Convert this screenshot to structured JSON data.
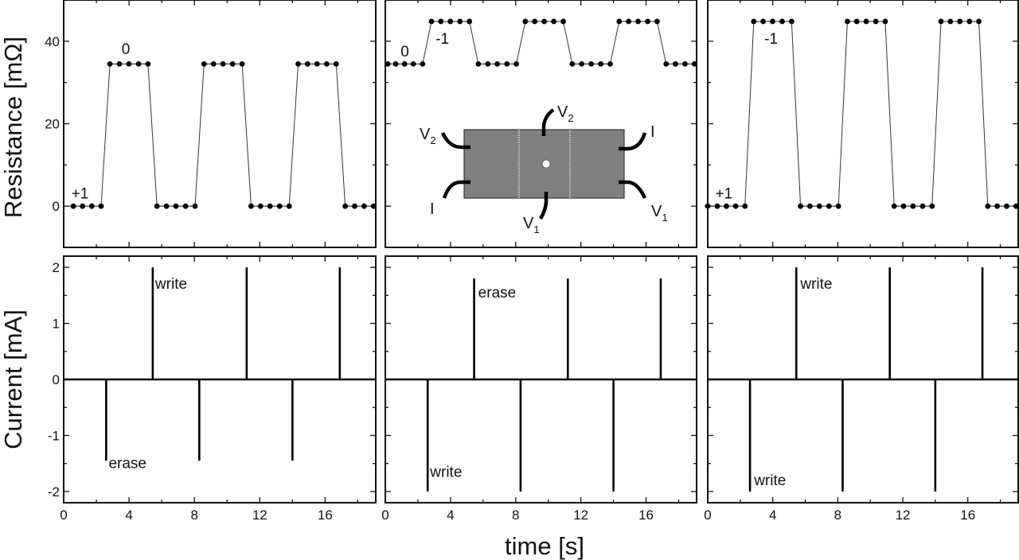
{
  "figure": {
    "x_axis_title": "time  [s]",
    "top_y_axis_title": "Resistance  [mΩ]",
    "bottom_y_axis_title": "Current  [mA]",
    "x_tick_labels": [
      "0",
      "4",
      "8",
      "12",
      "16"
    ],
    "top_y_tick_labels": [
      "0",
      "20",
      "40"
    ],
    "bottom_y_tick_labels": [
      "-2",
      "-1",
      "0",
      "1",
      "2"
    ]
  },
  "inset": {
    "labels": [
      "V2",
      "V2",
      "I",
      "I",
      "V1",
      "V1"
    ],
    "fill_color": "#808080"
  },
  "chart_data": [
    {
      "type": "line",
      "panel": "top-left",
      "ylabel": "Resistance [mΩ]",
      "xlabel": "time [s]",
      "xlim": [
        0,
        19.1
      ],
      "ylim": [
        -10,
        50
      ],
      "y_ticks": [
        0,
        20,
        40
      ],
      "x_ticks": [
        0,
        4,
        8,
        12,
        16
      ],
      "annotations": [
        {
          "text": "+1",
          "x": 1.0,
          "y": 3
        },
        {
          "text": "0",
          "x": 3.8,
          "y": 38
        }
      ],
      "levels": {
        "low": 0,
        "high": 34.5
      },
      "start_level": "low",
      "groups": [
        {
          "level": "low",
          "t": [
            0.59,
            1.15,
            1.72,
            2.29
          ]
        },
        {
          "level": "high",
          "t": [
            2.83,
            3.41,
            3.99,
            4.58,
            5.16
          ]
        },
        {
          "level": "low",
          "t": [
            5.71,
            6.29,
            6.87,
            7.46,
            8.04
          ]
        },
        {
          "level": "high",
          "t": [
            8.59,
            9.17,
            9.75,
            10.34,
            10.92
          ]
        },
        {
          "level": "low",
          "t": [
            11.47,
            12.05,
            12.63,
            13.22,
            13.8
          ]
        },
        {
          "level": "high",
          "t": [
            14.35,
            14.93,
            15.51,
            16.1,
            16.68
          ]
        },
        {
          "level": "low",
          "t": [
            17.23,
            17.81,
            18.39,
            18.97
          ]
        }
      ]
    },
    {
      "type": "line",
      "panel": "top-middle",
      "ylabel": "Resistance [mΩ]",
      "xlabel": "time [s]",
      "xlim": [
        0,
        19.1
      ],
      "ylim": [
        -10,
        50
      ],
      "annotations": [
        {
          "text": "0",
          "x": 1.2,
          "y": 37.5
        },
        {
          "text": "-1",
          "x": 3.5,
          "y": 40.5
        }
      ],
      "levels": {
        "low": 34.5,
        "high": 44.8
      },
      "groups": [
        {
          "level": "low",
          "t": [
            0.15,
            0.64,
            1.18,
            1.72,
            2.29
          ]
        },
        {
          "level": "high",
          "t": [
            2.83,
            3.41,
            3.99,
            4.58,
            5.16
          ]
        },
        {
          "level": "low",
          "t": [
            5.71,
            6.29,
            6.87,
            7.46,
            8.04
          ]
        },
        {
          "level": "high",
          "t": [
            8.59,
            9.17,
            9.75,
            10.34,
            10.92
          ]
        },
        {
          "level": "low",
          "t": [
            11.47,
            12.05,
            12.63,
            13.22,
            13.8
          ]
        },
        {
          "level": "high",
          "t": [
            14.35,
            14.93,
            15.51,
            16.1,
            16.68
          ]
        },
        {
          "level": "low",
          "t": [
            17.23,
            17.81,
            18.39,
            18.97
          ]
        }
      ]
    },
    {
      "type": "line",
      "panel": "top-right",
      "ylabel": "Resistance [mΩ]",
      "xlabel": "time [s]",
      "xlim": [
        0,
        19.1
      ],
      "ylim": [
        -10,
        50
      ],
      "annotations": [
        {
          "text": "+1",
          "x": 1.0,
          "y": 3
        },
        {
          "text": "-1",
          "x": 3.9,
          "y": 40.5
        }
      ],
      "levels": {
        "low": 0,
        "high": 44.8
      },
      "groups": [
        {
          "level": "low",
          "t": [
            0.0,
            0.59,
            1.15,
            1.72,
            2.29
          ]
        },
        {
          "level": "high",
          "t": [
            2.83,
            3.41,
            3.99,
            4.58,
            5.16
          ]
        },
        {
          "level": "low",
          "t": [
            5.71,
            6.29,
            6.87,
            7.46,
            8.04
          ]
        },
        {
          "level": "high",
          "t": [
            8.59,
            9.17,
            9.75,
            10.34,
            10.92
          ]
        },
        {
          "level": "low",
          "t": [
            11.47,
            12.05,
            12.63,
            13.22,
            13.8
          ]
        },
        {
          "level": "high",
          "t": [
            14.35,
            14.93,
            15.51,
            16.1,
            16.68
          ]
        },
        {
          "level": "low",
          "t": [
            17.23,
            17.81,
            18.39,
            18.97
          ]
        }
      ]
    },
    {
      "type": "line",
      "panel": "bottom-left",
      "ylabel": "Current [mA]",
      "xlabel": "time [s]",
      "xlim": [
        0,
        19.1
      ],
      "ylim": [
        -2.2,
        2.2
      ],
      "y_ticks": [
        -2,
        -1,
        0,
        1,
        2
      ],
      "pulses": [
        {
          "t": 2.6,
          "amp": -1.45
        },
        {
          "t": 5.45,
          "amp": 2.0
        },
        {
          "t": 8.3,
          "amp": -1.45
        },
        {
          "t": 11.2,
          "amp": 2.0
        },
        {
          "t": 14.0,
          "amp": -1.45
        },
        {
          "t": 16.9,
          "amp": 2.0
        }
      ],
      "annotations": [
        {
          "text": "write",
          "x": 5.6,
          "y": 1.7
        },
        {
          "text": "erase",
          "x": 2.75,
          "y": -1.5
        }
      ]
    },
    {
      "type": "line",
      "panel": "bottom-middle",
      "ylabel": "Current [mA]",
      "xlabel": "time [s]",
      "xlim": [
        0,
        19.1
      ],
      "ylim": [
        -2.2,
        2.2
      ],
      "pulses": [
        {
          "t": 2.6,
          "amp": -2.0
        },
        {
          "t": 5.45,
          "amp": 1.8
        },
        {
          "t": 8.3,
          "amp": -2.0
        },
        {
          "t": 11.2,
          "amp": 1.8
        },
        {
          "t": 14.0,
          "amp": -2.0
        },
        {
          "t": 16.9,
          "amp": 1.8
        }
      ],
      "annotations": [
        {
          "text": "erase",
          "x": 5.7,
          "y": 1.55
        },
        {
          "text": "write",
          "x": 2.75,
          "y": -1.65
        }
      ]
    },
    {
      "type": "line",
      "panel": "bottom-right",
      "ylabel": "Current [mA]",
      "xlabel": "time [s]",
      "xlim": [
        0,
        19.1
      ],
      "ylim": [
        -2.2,
        2.2
      ],
      "pulses": [
        {
          "t": 2.6,
          "amp": -2.0
        },
        {
          "t": 5.45,
          "amp": 2.0
        },
        {
          "t": 8.3,
          "amp": -2.0
        },
        {
          "t": 11.2,
          "amp": 2.0
        },
        {
          "t": 14.0,
          "amp": -2.0
        },
        {
          "t": 16.9,
          "amp": 2.0
        }
      ],
      "annotations": [
        {
          "text": "write",
          "x": 5.7,
          "y": 1.7
        },
        {
          "text": "write",
          "x": 2.85,
          "y": -1.8
        }
      ]
    }
  ]
}
